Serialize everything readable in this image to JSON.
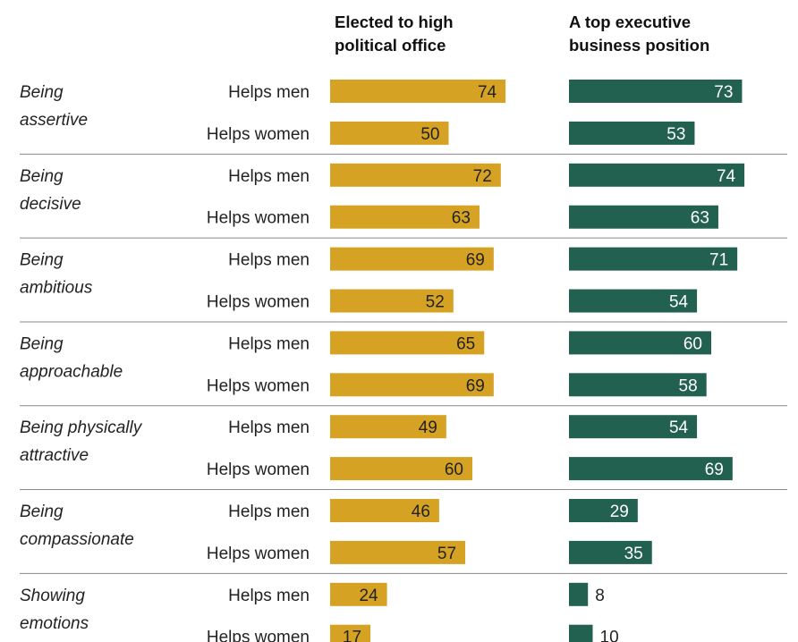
{
  "chart_data": {
    "type": "bar",
    "orientation": "horizontal",
    "panels": [
      {
        "title_lines": [
          "Elected to high",
          "political office"
        ],
        "color": "#d6a223",
        "max": 80
      },
      {
        "title_lines": [
          "A top executive",
          "business position"
        ],
        "color": "#226050",
        "max": 80
      }
    ],
    "groups": [
      {
        "label_lines": [
          "Being",
          "assertive"
        ],
        "rows": [
          {
            "label": "Helps men",
            "values": [
              74,
              73
            ]
          },
          {
            "label": "Helps women",
            "values": [
              50,
              53
            ]
          }
        ]
      },
      {
        "label_lines": [
          "Being",
          "decisive"
        ],
        "rows": [
          {
            "label": "Helps men",
            "values": [
              72,
              74
            ]
          },
          {
            "label": "Helps women",
            "values": [
              63,
              63
            ]
          }
        ]
      },
      {
        "label_lines": [
          "Being",
          "ambitious"
        ],
        "rows": [
          {
            "label": "Helps men",
            "values": [
              69,
              71
            ]
          },
          {
            "label": "Helps women",
            "values": [
              52,
              54
            ]
          }
        ]
      },
      {
        "label_lines": [
          "Being",
          "approachable"
        ],
        "rows": [
          {
            "label": "Helps men",
            "values": [
              65,
              60
            ]
          },
          {
            "label": "Helps women",
            "values": [
              69,
              58
            ]
          }
        ]
      },
      {
        "label_lines": [
          "Being physically",
          "attractive"
        ],
        "rows": [
          {
            "label": "Helps men",
            "values": [
              49,
              54
            ]
          },
          {
            "label": "Helps women",
            "values": [
              60,
              69
            ]
          }
        ]
      },
      {
        "label_lines": [
          "Being",
          "compassionate"
        ],
        "rows": [
          {
            "label": "Helps men",
            "values": [
              46,
              29
            ]
          },
          {
            "label": "Helps women",
            "values": [
              57,
              35
            ]
          }
        ]
      },
      {
        "label_lines": [
          "Showing",
          "emotions"
        ],
        "rows": [
          {
            "label": "Helps men",
            "values": [
              24,
              8
            ]
          },
          {
            "label": "Helps women",
            "values": [
              17,
              10
            ]
          }
        ]
      }
    ]
  }
}
